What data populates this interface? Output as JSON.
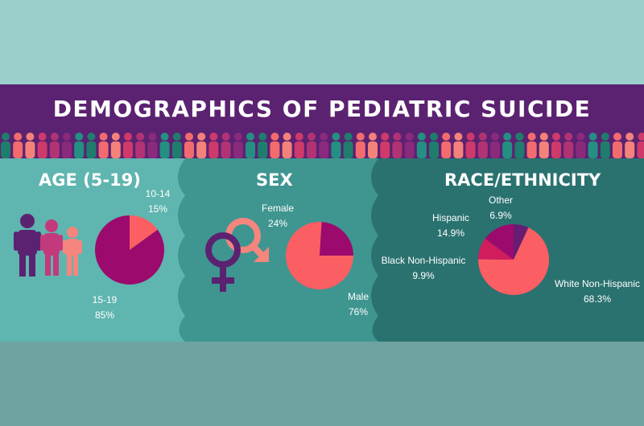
{
  "title": "DEMOGRAPHICS OF PEDIATRIC SUICIDE",
  "colors": {
    "banner": "#5b2271",
    "bg_top": "#9bcfcb",
    "panel_age": "#5fb5af",
    "panel_sex": "#3f9690",
    "panel_race": "#2a7270",
    "bg_bottom": "#6fa3a1",
    "pie_primary": "#fb5e63",
    "pie_magenta": "#9b0a6c",
    "pie_pink": "#d11c5d",
    "pie_purple": "#661d72",
    "people_row": [
      "#1f7d6e",
      "#8a2a7d",
      "#cf3a6b",
      "#f26b6e",
      "#239083",
      "#b23373",
      "#f4827a"
    ],
    "family": [
      "#5b2271",
      "#c33a7c",
      "#f5857d"
    ],
    "sex_symbol_female": "#5b2271",
    "sex_symbol_male": "#f5857d"
  },
  "icons": [
    "person-row-icons",
    "family-icon",
    "female-symbol-icon",
    "male-symbol-icon"
  ],
  "chart_data": [
    {
      "type": "pie",
      "title": "AGE (5-19)",
      "slices": [
        {
          "label": "10-14",
          "value": 15,
          "display": "15%",
          "color": "#fb5e63"
        },
        {
          "label": "15-19",
          "value": 85,
          "display": "85%",
          "color": "#9b0a6c"
        }
      ]
    },
    {
      "type": "pie",
      "title": "SEX",
      "slices": [
        {
          "label": "Female",
          "value": 24,
          "display": "24%",
          "color": "#9b0a6c"
        },
        {
          "label": "Male",
          "value": 76,
          "display": "76%",
          "color": "#fb5e63"
        }
      ]
    },
    {
      "type": "pie",
      "title": "RACE/ETHNICITY",
      "slices": [
        {
          "label": "Other",
          "value": 6.9,
          "display": "6.9%",
          "color": "#661d72"
        },
        {
          "label": "White Non-Hispanic",
          "value": 68.3,
          "display": "68.3%",
          "color": "#fb5e63"
        },
        {
          "label": "Black Non-Hispanic",
          "value": 9.9,
          "display": "9.9%",
          "color": "#d11c5d"
        },
        {
          "label": "Hispanic",
          "value": 14.9,
          "display": "14.9%",
          "color": "#9b0a6c"
        }
      ]
    }
  ]
}
